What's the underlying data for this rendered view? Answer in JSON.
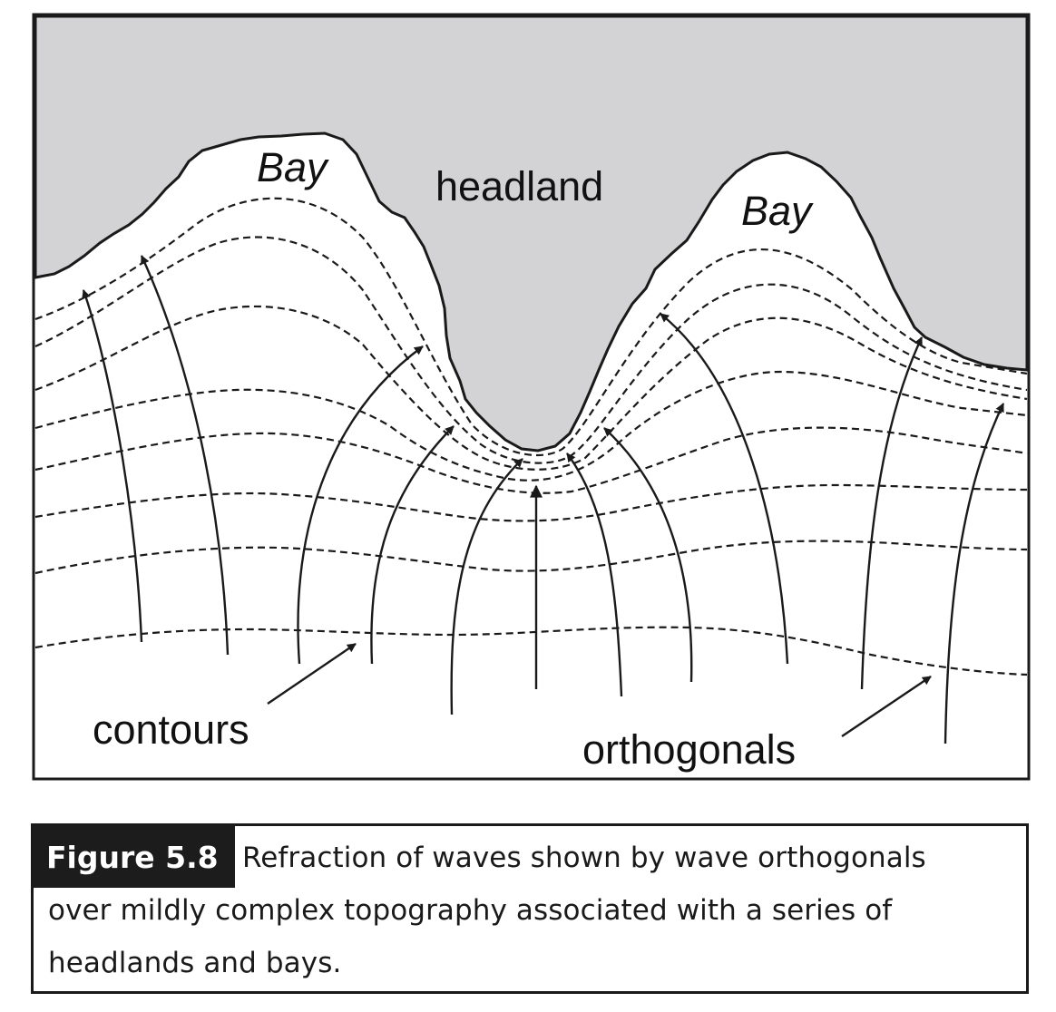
{
  "diagram": {
    "labels": {
      "bay_left": "Bay",
      "headland": "headland",
      "bay_right": "Bay",
      "contours": "contours",
      "orthogonals": "orthogonals"
    },
    "colors": {
      "land": "#d3d3d5",
      "line": "#1a1a1a",
      "background": "#ffffff"
    }
  },
  "caption": {
    "tag": "Figure 5.8",
    "lines": [
      "Refraction of waves shown by wave orthogonals",
      "over mildly complex topography associated with a series of",
      "headlands and bays."
    ]
  }
}
